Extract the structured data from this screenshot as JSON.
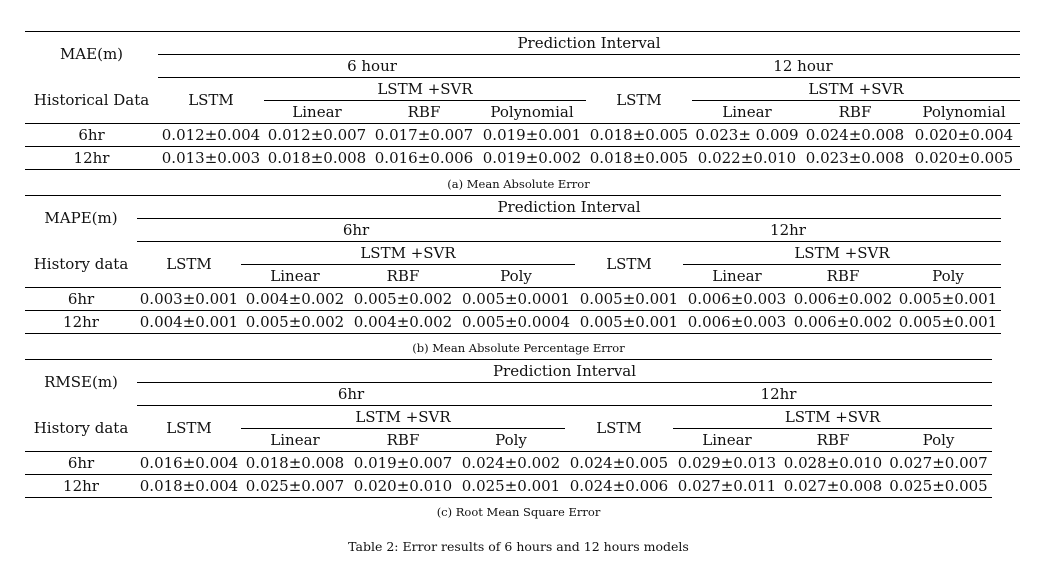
{
  "tables": [
    {
      "metric": "MAE(m)",
      "header_group": "Prediction Interval",
      "interval_6": "6 hour",
      "interval_12": "12 hour",
      "row_header": "Historical Data",
      "lstm": "LSTM",
      "svr": "LSTM +SVR",
      "linear": "Linear",
      "rbf": "RBF",
      "poly": "Polynomial",
      "rows": [
        {
          "label": "6hr",
          "cells": [
            "0.012±0.004",
            "0.012±0.007",
            "0.017±0.007",
            "0.019±0.001",
            "0.018±0.005",
            "0.023± 0.009",
            "0.024±0.008",
            "0.020±0.004"
          ]
        },
        {
          "label": "12hr",
          "cells": [
            "0.013±0.003",
            "0.018±0.008",
            "0.016±0.006",
            "0.019±0.002",
            "0.018±0.005",
            "0.022±0.010",
            "0.023±0.008",
            "0.020±0.005"
          ]
        }
      ],
      "caption": "(a) Mean Absolute Error"
    },
    {
      "metric": "MAPE(m)",
      "header_group": "Prediction Interval",
      "interval_6": "6hr",
      "interval_12": "12hr",
      "row_header": "History data",
      "lstm": "LSTM",
      "svr": "LSTM +SVR",
      "linear": "Linear",
      "rbf": "RBF",
      "poly": "Poly",
      "rows": [
        {
          "label": "6hr",
          "cells": [
            "0.003±0.001",
            "0.004±0.002",
            "0.005±0.002",
            "0.005±0.0001",
            "0.005±0.001",
            "0.006±0.003",
            "0.006±0.002",
            "0.005±0.001"
          ]
        },
        {
          "label": "12hr",
          "cells": [
            "0.004±0.001",
            "0.005±0.002",
            "0.004±0.002",
            "0.005±0.0004",
            "0.005±0.001",
            "0.006±0.003",
            "0.006±0.002",
            "0.005±0.001"
          ]
        }
      ],
      "caption": "(b) Mean Absolute Percentage Error"
    },
    {
      "metric": "RMSE(m)",
      "header_group": "Prediction Interval",
      "interval_6": "6hr",
      "interval_12": "12hr",
      "row_header": "History data",
      "lstm": "LSTM",
      "svr": "LSTM +SVR",
      "linear": "Linear",
      "rbf": "RBF",
      "poly": "Poly",
      "rows": [
        {
          "label": "6hr",
          "cells": [
            "0.016±0.004",
            "0.018±0.008",
            "0.019±0.007",
            "0.024±0.002",
            "0.024±0.005",
            "0.029±0.013",
            "0.028±0.010",
            "0.027±0.007"
          ]
        },
        {
          "label": "12hr",
          "cells": [
            "0.018±0.004",
            "0.025±0.007",
            "0.020±0.010",
            "0.025±0.001",
            "0.024±0.006",
            "0.027±0.011",
            "0.027±0.008",
            "0.025±0.005"
          ]
        }
      ],
      "caption": "(c) Root Mean Square Error"
    }
  ],
  "main_caption": "Table 2: Error results of 6 hours and 12 hours models"
}
